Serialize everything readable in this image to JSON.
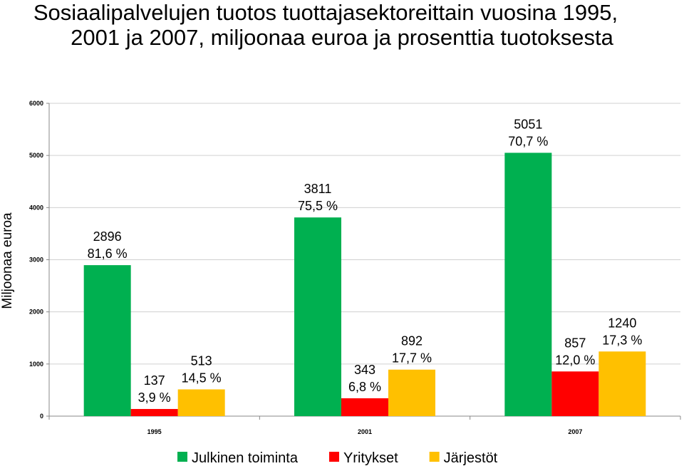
{
  "title_line1": "Sosiaalipalvelujen tuotos tuottajasektoreittain vuosina 1995,",
  "title_line2": "2001 ja 2007, miljoonaa euroa ja prosenttia tuotoksesta",
  "chart_data": {
    "type": "bar",
    "title": "Sosiaalipalvelujen tuotos tuottajasektoreittain vuosina 1995, 2001 ja 2007, miljoonaa euroa ja prosenttia tuotoksesta",
    "ylabel": "Miljoonaa euroa",
    "xlabel": "",
    "ylim": [
      0,
      6000
    ],
    "yticks": [
      "0",
      "1000",
      "2000",
      "3000",
      "4000",
      "5000",
      "6000"
    ],
    "grid": true,
    "legend_position": "bottom",
    "categories": [
      "1995",
      "2001",
      "2007"
    ],
    "series": [
      {
        "name": "Julkinen toiminta",
        "color": "#00b050",
        "values": [
          2896,
          3811,
          5051
        ],
        "labels": [
          "2896",
          "3811",
          "5051"
        ],
        "percents": [
          "81,6 %",
          "75,5 %",
          "70,7 %"
        ]
      },
      {
        "name": "Yritykset",
        "color": "#ff0000",
        "values": [
          137,
          343,
          857
        ],
        "labels": [
          "137",
          "343",
          "857"
        ],
        "percents": [
          "3,9 %",
          "6,8 %",
          "12,0 %"
        ]
      },
      {
        "name": "Järjestöt",
        "color": "#ffc000",
        "values": [
          513,
          892,
          1240
        ],
        "labels": [
          "513",
          "892",
          "1240"
        ],
        "percents": [
          "14,5 %",
          "17,7 %",
          "17,3 %"
        ]
      }
    ]
  }
}
